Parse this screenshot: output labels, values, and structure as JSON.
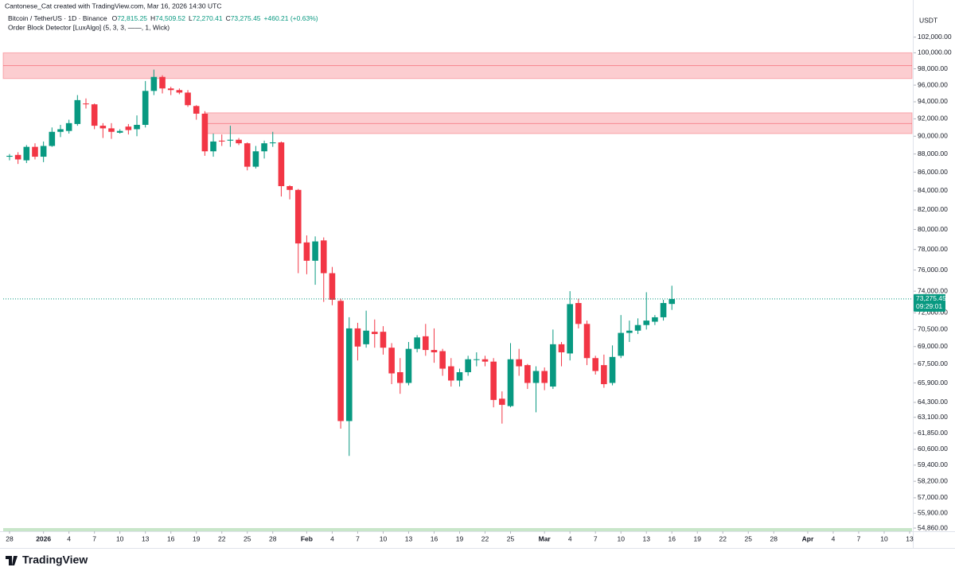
{
  "header": {
    "credit": "Cantonese_Cat created with TradingView.com, Mar 16, 2026 14:30 UTC",
    "symbol": "Bitcoin / TetherUS · 1D · Binance",
    "ohlc": [
      {
        "key": "O",
        "value": "72,815.25"
      },
      {
        "key": "H",
        "value": "74,509.52"
      },
      {
        "key": "L",
        "value": "72,270.41"
      },
      {
        "key": "C",
        "value": "73,275.45"
      }
    ],
    "change": "+460.21 (+0.63%)",
    "indicator": "Order Block Detector [LuxAlgo] (5, 3, 3, ——, 1, Wick)",
    "currency": "USDT"
  },
  "footer": {
    "brand": "TradingView"
  },
  "chart_data": {
    "type": "candlestick",
    "log_scale": true,
    "up_color": "#089981",
    "down_color": "#f23645",
    "xlim": [
      "2025-12-27",
      "2026-04-13"
    ],
    "ylim": [
      54640,
      106900
    ],
    "x": [
      "2025-12-28",
      "2025-12-29",
      "2025-12-30",
      "2025-12-31",
      "2026-01-01",
      "2026-01-02",
      "2026-01-03",
      "2026-01-04",
      "2026-01-05",
      "2026-01-06",
      "2026-01-07",
      "2026-01-08",
      "2026-01-09",
      "2026-01-10",
      "2026-01-11",
      "2026-01-12",
      "2026-01-13",
      "2026-01-14",
      "2026-01-15",
      "2026-01-16",
      "2026-01-17",
      "2026-01-18",
      "2026-01-19",
      "2026-01-20",
      "2026-01-21",
      "2026-01-22",
      "2026-01-23",
      "2026-01-24",
      "2026-01-25",
      "2026-01-26",
      "2026-01-27",
      "2026-01-28",
      "2026-01-29",
      "2026-01-30",
      "2026-01-31",
      "2026-02-01",
      "2026-02-02",
      "2026-02-03",
      "2026-02-04",
      "2026-02-05",
      "2026-02-06",
      "2026-02-07",
      "2026-02-08",
      "2026-02-09",
      "2026-02-10",
      "2026-02-11",
      "2026-02-12",
      "2026-02-13",
      "2026-02-14",
      "2026-02-15",
      "2026-02-16",
      "2026-02-17",
      "2026-02-18",
      "2026-02-19",
      "2026-02-20",
      "2026-02-21",
      "2026-02-22",
      "2026-02-23",
      "2026-02-24",
      "2026-02-25",
      "2026-02-26",
      "2026-02-27",
      "2026-02-28",
      "2026-03-01",
      "2026-03-02",
      "2026-03-03",
      "2026-03-04",
      "2026-03-05",
      "2026-03-06",
      "2026-03-07",
      "2026-03-08",
      "2026-03-09",
      "2026-03-10",
      "2026-03-11",
      "2026-03-12",
      "2026-03-13",
      "2026-03-14",
      "2026-03-15",
      "2026-03-16"
    ],
    "open": [
      87700,
      87900,
      87300,
      88800,
      87700,
      88900,
      90500,
      90600,
      91400,
      93800,
      93700,
      91200,
      90900,
      90400,
      91100,
      90800,
      91300,
      95300,
      97000,
      95600,
      95400,
      95100,
      93500,
      92600,
      88300,
      89500,
      89500,
      89600,
      89200,
      86600,
      88300,
      89200,
      89300,
      84500,
      84100,
      78700,
      76900,
      78900,
      75700,
      73100,
      62800,
      70600,
      69200,
      70300,
      70300,
      68900,
      66800,
      65900,
      68800,
      69900,
      68700,
      68600,
      67300,
      66100,
      66800,
      67900,
      67900,
      67700,
      64600,
      64000,
      67900,
      67400,
      65900,
      66900,
      65600,
      69200,
      68400,
      72900,
      71000,
      68000,
      67400,
      65900,
      68200,
      70200,
      70400,
      70900,
      71200,
      71600,
      72815.25
    ],
    "high": [
      88000,
      88200,
      89000,
      89200,
      89400,
      91000,
      91300,
      91900,
      94800,
      94400,
      93800,
      91500,
      91500,
      90800,
      91400,
      92400,
      96500,
      97900,
      97200,
      95800,
      95600,
      95400,
      93600,
      92900,
      90300,
      90200,
      91200,
      89800,
      89300,
      88900,
      89500,
      90500,
      89400,
      84600,
      84200,
      79400,
      79300,
      79200,
      76300,
      73300,
      71600,
      71100,
      72200,
      71400,
      70800,
      69300,
      68000,
      69400,
      70000,
      71000,
      70600,
      68800,
      68000,
      67100,
      68200,
      68500,
      68200,
      68000,
      65200,
      69300,
      68800,
      67500,
      67300,
      67200,
      70500,
      69400,
      74000,
      73300,
      71300,
      68200,
      68300,
      69100,
      71800,
      71300,
      71500,
      73900,
      71800,
      73200,
      74509.52
    ],
    "low": [
      87300,
      86900,
      87000,
      87400,
      87100,
      88800,
      89900,
      90300,
      91200,
      93200,
      90800,
      89800,
      89700,
      90300,
      90200,
      90000,
      91000,
      94800,
      95000,
      94800,
      94900,
      93400,
      91900,
      87800,
      87700,
      88900,
      88800,
      89000,
      86200,
      86400,
      87500,
      88800,
      83400,
      83100,
      75700,
      75600,
      74600,
      73000,
      72700,
      62200,
      60100,
      67800,
      68900,
      68900,
      68300,
      65800,
      65000,
      65700,
      68500,
      68200,
      67600,
      66500,
      65600,
      65600,
      66500,
      67300,
      67300,
      63900,
      62600,
      63900,
      66500,
      65400,
      63500,
      65300,
      65400,
      67300,
      67800,
      70600,
      67400,
      66600,
      65500,
      65700,
      68000,
      69400,
      70100,
      70500,
      70900,
      71300,
      72270.41
    ],
    "close": [
      87800,
      87400,
      88800,
      87700,
      88900,
      90500,
      90800,
      91500,
      94200,
      93700,
      91200,
      90900,
      90500,
      90600,
      90700,
      91300,
      95300,
      97000,
      95600,
      95400,
      95100,
      93600,
      92600,
      88300,
      89400,
      89400,
      89600,
      89200,
      86600,
      88300,
      89200,
      89300,
      84500,
      84100,
      78600,
      76900,
      78800,
      75700,
      73200,
      62800,
      70600,
      69000,
      70400,
      70100,
      68900,
      66700,
      65900,
      68800,
      69800,
      68700,
      68500,
      67100,
      66100,
      66800,
      67900,
      67900,
      67700,
      64500,
      64100,
      67900,
      67300,
      65900,
      66900,
      65900,
      69200,
      68500,
      72800,
      71000,
      68000,
      66900,
      65800,
      68100,
      70200,
      70400,
      70900,
      71300,
      71600,
      72900,
      73275.45
    ],
    "order_blocks": [
      {
        "start": "2025-12-27",
        "top": 100000,
        "mid": 98400,
        "bottom": 96800,
        "color": "#f23645"
      },
      {
        "start": "2026-01-20",
        "top": 92700,
        "mid": 91450,
        "bottom": 90300,
        "color": "#f23645"
      }
    ],
    "last_price": {
      "value": 73275.45,
      "label": "73,275.45"
    },
    "countdown": "09:29:01",
    "yticks": [
      {
        "value": 102000,
        "label": "102,000.00"
      },
      {
        "value": 100000,
        "label": "100,000.00"
      },
      {
        "value": 98000,
        "label": "98,000.00"
      },
      {
        "value": 96000,
        "label": "96,000.00"
      },
      {
        "value": 94000,
        "label": "94,000.00"
      },
      {
        "value": 92000,
        "label": "92,000.00"
      },
      {
        "value": 90000,
        "label": "90,000.00"
      },
      {
        "value": 88000,
        "label": "88,000.00"
      },
      {
        "value": 86000,
        "label": "86,000.00"
      },
      {
        "value": 84000,
        "label": "84,000.00"
      },
      {
        "value": 82000,
        "label": "82,000.00"
      },
      {
        "value": 80000,
        "label": "80,000.00"
      },
      {
        "value": 78000,
        "label": "78,000.00"
      },
      {
        "value": 76000,
        "label": "76,000.00"
      },
      {
        "value": 74000,
        "label": "74,000.00"
      },
      {
        "value": 72000,
        "label": "72,000.00"
      },
      {
        "value": 70500,
        "label": "70,500.00"
      },
      {
        "value": 69000,
        "label": "69,000.00"
      },
      {
        "value": 67500,
        "label": "67,500.00"
      },
      {
        "value": 65900,
        "label": "65,900.00"
      },
      {
        "value": 64300,
        "label": "64,300.00"
      },
      {
        "value": 63100,
        "label": "63,100.00"
      },
      {
        "value": 61850,
        "label": "61,850.00"
      },
      {
        "value": 60600,
        "label": "60,600.00"
      },
      {
        "value": 59400,
        "label": "59,400.00"
      },
      {
        "value": 58200,
        "label": "58,200.00"
      },
      {
        "value": 57000,
        "label": "57,000.00"
      },
      {
        "value": 55900,
        "label": "55,900.00"
      },
      {
        "value": 54860,
        "label": "54,860.00"
      }
    ],
    "xticks": [
      {
        "value": "2025-12-28",
        "label": "28"
      },
      {
        "value": "2026-01-01",
        "label": "2026"
      },
      {
        "value": "2026-01-04",
        "label": "4"
      },
      {
        "value": "2026-01-07",
        "label": "7"
      },
      {
        "value": "2026-01-10",
        "label": "10"
      },
      {
        "value": "2026-01-13",
        "label": "13"
      },
      {
        "value": "2026-01-16",
        "label": "16"
      },
      {
        "value": "2026-01-19",
        "label": "19"
      },
      {
        "value": "2026-01-22",
        "label": "22"
      },
      {
        "value": "2026-01-25",
        "label": "25"
      },
      {
        "value": "2026-01-28",
        "label": "28"
      },
      {
        "value": "2026-02-01",
        "label": "Feb"
      },
      {
        "value": "2026-02-04",
        "label": "4"
      },
      {
        "value": "2026-02-07",
        "label": "7"
      },
      {
        "value": "2026-02-10",
        "label": "10"
      },
      {
        "value": "2026-02-13",
        "label": "13"
      },
      {
        "value": "2026-02-16",
        "label": "16"
      },
      {
        "value": "2026-02-19",
        "label": "19"
      },
      {
        "value": "2026-02-22",
        "label": "22"
      },
      {
        "value": "2026-02-25",
        "label": "25"
      },
      {
        "value": "2026-03-01",
        "label": "Mar"
      },
      {
        "value": "2026-03-04",
        "label": "4"
      },
      {
        "value": "2026-03-07",
        "label": "7"
      },
      {
        "value": "2026-03-10",
        "label": "10"
      },
      {
        "value": "2026-03-13",
        "label": "13"
      },
      {
        "value": "2026-03-16",
        "label": "16"
      },
      {
        "value": "2026-03-19",
        "label": "19"
      },
      {
        "value": "2026-03-22",
        "label": "22"
      },
      {
        "value": "2026-03-25",
        "label": "25"
      },
      {
        "value": "2026-03-28",
        "label": "28"
      },
      {
        "value": "2026-04-01",
        "label": "Apr"
      },
      {
        "value": "2026-04-04",
        "label": "4"
      },
      {
        "value": "2026-04-07",
        "label": "7"
      },
      {
        "value": "2026-04-10",
        "label": "10"
      },
      {
        "value": "2026-04-13",
        "label": "13"
      }
    ]
  }
}
